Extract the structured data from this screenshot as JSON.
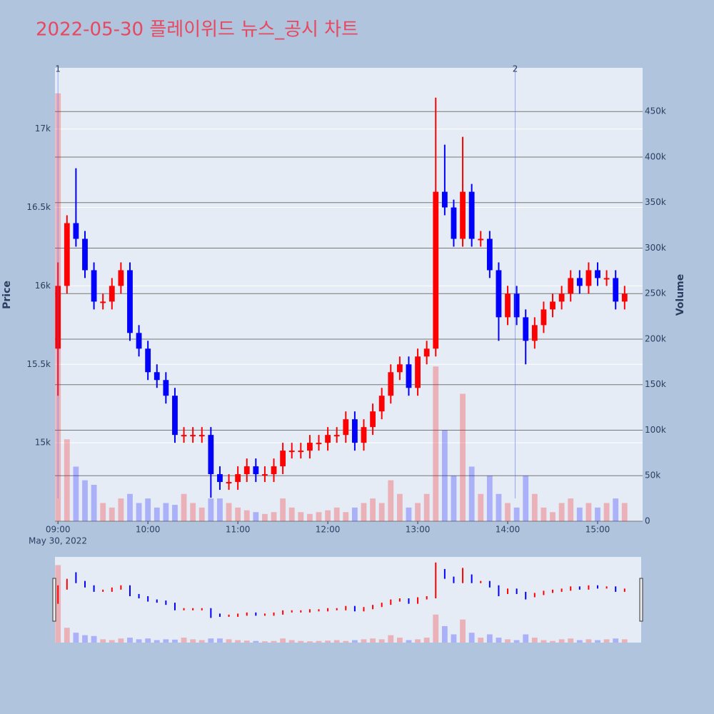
{
  "chart_data": {
    "type": "candlestick",
    "title": "2022-05-30 플레이위드 뉴스_공시 차트",
    "y_label": "Price",
    "y2_label": "Volume",
    "x_sublabel": "May 30, 2022",
    "increasing_color": "#ff0000",
    "decreasing_color": "#0000ff",
    "x": [
      "2022-05-30 09:00",
      "2022-05-30 09:06",
      "2022-05-30 09:12",
      "2022-05-30 09:18",
      "2022-05-30 09:24",
      "2022-05-30 09:30",
      "2022-05-30 09:36",
      "2022-05-30 09:42",
      "2022-05-30 09:48",
      "2022-05-30 09:54",
      "2022-05-30 10:00",
      "2022-05-30 10:06",
      "2022-05-30 10:12",
      "2022-05-30 10:18",
      "2022-05-30 10:24",
      "2022-05-30 10:30",
      "2022-05-30 10:36",
      "2022-05-30 10:42",
      "2022-05-30 10:48",
      "2022-05-30 10:54",
      "2022-05-30 11:00",
      "2022-05-30 11:06",
      "2022-05-30 11:12",
      "2022-05-30 11:18",
      "2022-05-30 11:24",
      "2022-05-30 11:30",
      "2022-05-30 11:36",
      "2022-05-30 11:42",
      "2022-05-30 11:48",
      "2022-05-30 11:54",
      "2022-05-30 12:00",
      "2022-05-30 12:06",
      "2022-05-30 12:12",
      "2022-05-30 12:18",
      "2022-05-30 12:24",
      "2022-05-30 12:30",
      "2022-05-30 12:36",
      "2022-05-30 12:42",
      "2022-05-30 12:48",
      "2022-05-30 12:54",
      "2022-05-30 13:00",
      "2022-05-30 13:06",
      "2022-05-30 13:12",
      "2022-05-30 13:18",
      "2022-05-30 13:24",
      "2022-05-30 13:30",
      "2022-05-30 13:36",
      "2022-05-30 13:42",
      "2022-05-30 13:48",
      "2022-05-30 13:54",
      "2022-05-30 14:00",
      "2022-05-30 14:06",
      "2022-05-30 14:12",
      "2022-05-30 14:18",
      "2022-05-30 14:24",
      "2022-05-30 14:30",
      "2022-05-30 14:36",
      "2022-05-30 14:42",
      "2022-05-30 14:48",
      "2022-05-30 14:54",
      "2022-05-30 15:00",
      "2022-05-30 15:06",
      "2022-05-30 15:12",
      "2022-05-30 15:18"
    ],
    "open": [
      15600,
      16000,
      16400,
      16300,
      16100,
      15900,
      15900,
      16000,
      16100,
      15700,
      15600,
      15450,
      15400,
      15300,
      15050,
      15050,
      15050,
      15050,
      14800,
      14750,
      14750,
      14800,
      14850,
      14800,
      14800,
      14850,
      14950,
      14950,
      14950,
      15000,
      15000,
      15050,
      15050,
      15150,
      15000,
      15100,
      15200,
      15300,
      15450,
      15500,
      15350,
      15550,
      15600,
      16600,
      16500,
      16300,
      16600,
      16300,
      16300,
      16100,
      15800,
      15950,
      15800,
      15650,
      15750,
      15850,
      15900,
      15950,
      16050,
      16000,
      16100,
      16050,
      16050,
      15900
    ],
    "high": [
      16150,
      16450,
      16750,
      16350,
      16150,
      15950,
      16050,
      16150,
      16150,
      15750,
      15650,
      15500,
      15450,
      15350,
      15100,
      15100,
      15100,
      15100,
      14850,
      14800,
      14850,
      14900,
      14900,
      14850,
      14900,
      15000,
      15000,
      15000,
      15050,
      15050,
      15100,
      15100,
      15200,
      15200,
      15150,
      15250,
      15350,
      15500,
      15550,
      15550,
      15600,
      15650,
      17200,
      16900,
      16550,
      16950,
      16650,
      16350,
      16350,
      16150,
      16000,
      16000,
      15850,
      15800,
      15900,
      15950,
      16000,
      16100,
      16100,
      16150,
      16150,
      16100,
      16100,
      16000
    ],
    "low": [
      15300,
      15950,
      16250,
      16050,
      15850,
      15850,
      15850,
      15950,
      15650,
      15550,
      15400,
      15350,
      15250,
      15000,
      15000,
      15000,
      15000,
      14650,
      14700,
      14700,
      14700,
      14750,
      14750,
      14750,
      14750,
      14800,
      14900,
      14900,
      14900,
      14950,
      14950,
      15000,
      15000,
      14950,
      14950,
      15050,
      15150,
      15250,
      15400,
      15300,
      15300,
      15500,
      15550,
      16450,
      16250,
      16250,
      16250,
      16250,
      16050,
      15650,
      15750,
      15750,
      15500,
      15600,
      15700,
      15800,
      15850,
      15900,
      15950,
      15950,
      16000,
      16000,
      15850,
      15850
    ],
    "close": [
      16000,
      16400,
      16300,
      16100,
      15900,
      15900,
      16000,
      16100,
      15700,
      15600,
      15450,
      15400,
      15300,
      15050,
      15050,
      15050,
      15050,
      14800,
      14750,
      14750,
      14800,
      14850,
      14800,
      14800,
      14850,
      14950,
      14950,
      14950,
      15000,
      15000,
      15050,
      15050,
      15150,
      15000,
      15100,
      15200,
      15300,
      15450,
      15500,
      15350,
      15550,
      15600,
      16600,
      16500,
      16300,
      16600,
      16300,
      16300,
      16100,
      15800,
      15950,
      15800,
      15650,
      15750,
      15850,
      15900,
      15950,
      16050,
      16000,
      16100,
      16050,
      16050,
      15900,
      15950
    ],
    "volume": [
      470000,
      90000,
      60000,
      45000,
      40000,
      20000,
      15000,
      25000,
      30000,
      20000,
      25000,
      15000,
      20000,
      18000,
      30000,
      20000,
      15000,
      25000,
      25000,
      20000,
      15000,
      12000,
      10000,
      8000,
      10000,
      25000,
      15000,
      10000,
      8000,
      10000,
      12000,
      15000,
      10000,
      15000,
      20000,
      25000,
      20000,
      45000,
      30000,
      15000,
      20000,
      30000,
      170000,
      100000,
      50000,
      140000,
      60000,
      30000,
      50000,
      30000,
      20000,
      15000,
      50000,
      30000,
      15000,
      10000,
      20000,
      25000,
      15000,
      20000,
      15000,
      20000,
      25000,
      20000
    ],
    "xlim": [
      "2022-05-30 08:58",
      "2022-05-30 15:30"
    ],
    "xticks": [
      {
        "value": "2022-05-30 09:00",
        "label": "09:00"
      },
      {
        "value": "2022-05-30 10:00",
        "label": "10:00"
      },
      {
        "value": "2022-05-30 11:00",
        "label": "11:00"
      },
      {
        "value": "2022-05-30 12:00",
        "label": "12:00"
      },
      {
        "value": "2022-05-30 13:00",
        "label": "13:00"
      },
      {
        "value": "2022-05-30 14:00",
        "label": "14:00"
      },
      {
        "value": "2022-05-30 15:00",
        "label": "15:00"
      }
    ],
    "ylim": [
      14500,
      17390
    ],
    "yticks": [
      {
        "value": 15000,
        "label": "15k"
      },
      {
        "value": 15500,
        "label": "15.5k"
      },
      {
        "value": 16000,
        "label": "16k"
      },
      {
        "value": 16500,
        "label": "16.5k"
      },
      {
        "value": 17000,
        "label": "17k"
      }
    ],
    "y2lim": [
      0,
      498000
    ],
    "y2ticks": [
      0,
      {
        "value": 50000,
        "label": "50k"
      },
      {
        "value": 100000,
        "label": "100k"
      },
      {
        "value": 150000,
        "label": "150k"
      },
      {
        "value": 200000,
        "label": "200k"
      },
      {
        "value": 250000,
        "label": "250k"
      },
      {
        "value": 300000,
        "label": "300k"
      },
      {
        "value": 350000,
        "label": "350k"
      },
      {
        "value": 400000,
        "label": "400k"
      },
      {
        "value": 450000,
        "label": "450k"
      }
    ],
    "events": [
      {
        "x": "2022-05-30 09:00",
        "label": "1"
      },
      {
        "x": "2022-05-30 14:05",
        "label": "2"
      }
    ],
    "rangeslider": true
  }
}
